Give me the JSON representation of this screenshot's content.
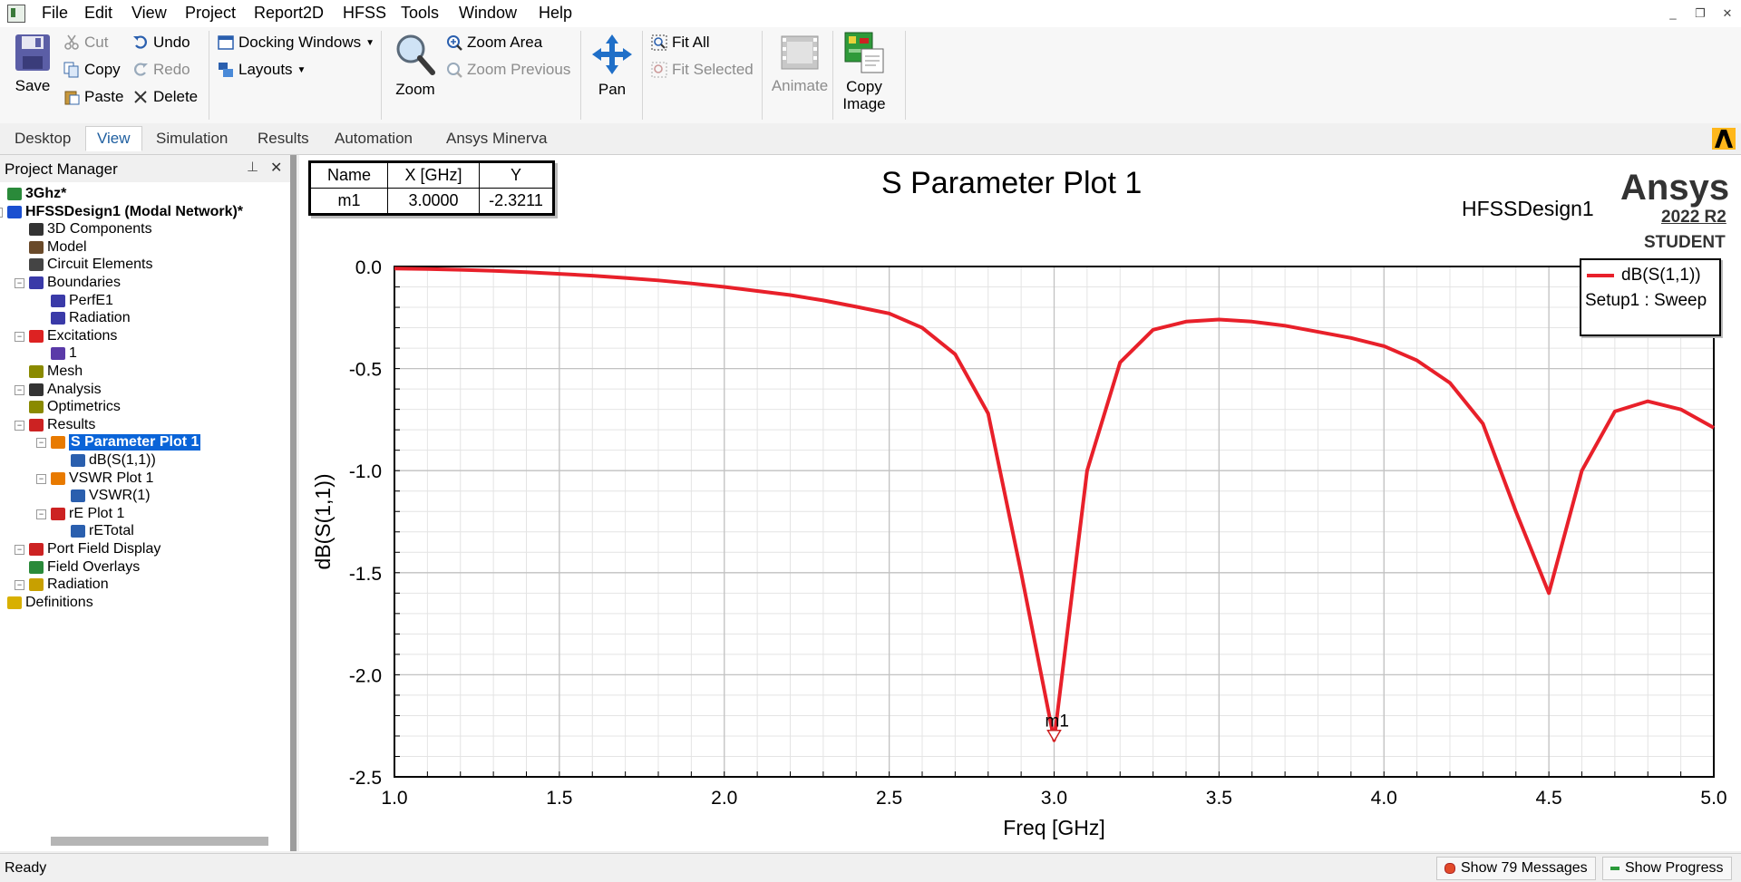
{
  "menubar": {
    "items": [
      "File",
      "Edit",
      "View",
      "Project",
      "Report2D",
      "HFSS",
      "Tools",
      "Window",
      "Help"
    ]
  },
  "ribbon": {
    "save": "Save",
    "cut": "Cut",
    "copy": "Copy",
    "paste": "Paste",
    "undo": "Undo",
    "redo": "Redo",
    "delete": "Delete",
    "docking_windows": "Docking Windows",
    "layouts": "Layouts",
    "zoom": "Zoom",
    "zoom_area": "Zoom Area",
    "zoom_previous": "Zoom Previous",
    "pan": "Pan",
    "fit_all": "Fit All",
    "fit_selected": "Fit Selected",
    "animate": "Animate",
    "copy_image_1": "Copy",
    "copy_image_2": "Image"
  },
  "tabs": [
    "Desktop",
    "View",
    "Simulation",
    "Results",
    "Automation",
    "Ansys Minerva"
  ],
  "active_tab": "View",
  "project_manager": {
    "title": "Project Manager",
    "tree": [
      {
        "label": "3Ghz*",
        "level": 0,
        "bold": true
      },
      {
        "label": "HFSSDesign1 (Modal Network)*",
        "level": 0,
        "bold": true
      },
      {
        "label": "3D Components",
        "level": 1
      },
      {
        "label": "Model",
        "level": 1
      },
      {
        "label": "Circuit Elements",
        "level": 1
      },
      {
        "label": "Boundaries",
        "level": 1
      },
      {
        "label": "PerfE1",
        "level": 2
      },
      {
        "label": "Radiation",
        "level": 2
      },
      {
        "label": "Excitations",
        "level": 1
      },
      {
        "label": "1",
        "level": 2
      },
      {
        "label": "Mesh",
        "level": 1
      },
      {
        "label": "Analysis",
        "level": 1
      },
      {
        "label": "Optimetrics",
        "level": 1
      },
      {
        "label": "Results",
        "level": 1
      },
      {
        "label": "S Parameter Plot 1",
        "level": 2,
        "selected": true
      },
      {
        "label": "dB(S(1,1))",
        "level": 3
      },
      {
        "label": "VSWR Plot 1",
        "level": 2
      },
      {
        "label": "VSWR(1)",
        "level": 3
      },
      {
        "label": "rE Plot 1",
        "level": 2
      },
      {
        "label": "rETotal",
        "level": 3
      },
      {
        "label": "Port Field Display",
        "level": 1
      },
      {
        "label": "Field Overlays",
        "level": 1
      },
      {
        "label": "Radiation",
        "level": 1
      },
      {
        "label": "Definitions",
        "level": 0
      }
    ]
  },
  "marker_table": {
    "headers": [
      "Name",
      "X [GHz]",
      "Y"
    ],
    "rows": [
      [
        "m1",
        "3.0000",
        "-2.3211"
      ]
    ]
  },
  "plot_header": {
    "design": "HFSSDesign1",
    "brand": "Ansys",
    "version": "2022 R2",
    "edition": "STUDENT"
  },
  "chart_data": {
    "type": "line",
    "title": "S Parameter Plot 1",
    "xlabel": "Freq [GHz]",
    "ylabel": "dB(S(1,1))",
    "xlim": [
      1.0,
      5.0
    ],
    "ylim": [
      -2.5,
      0.0
    ],
    "xticks": [
      "1.0",
      "1.5",
      "2.0",
      "2.5",
      "3.0",
      "3.5",
      "4.0",
      "4.5",
      "5.0"
    ],
    "yticks": [
      "0.0",
      "-0.5",
      "-1.0",
      "-1.5",
      "-2.0",
      "-2.5"
    ],
    "grid": true,
    "legend_position": "top-right",
    "series": [
      {
        "name": "dB(S(1,1))",
        "subtitle": "Setup1 : Sweep",
        "color": "#e8202a",
        "x": [
          1.0,
          1.1,
          1.2,
          1.3,
          1.4,
          1.5,
          1.6,
          1.7,
          1.8,
          1.9,
          2.0,
          2.1,
          2.2,
          2.3,
          2.4,
          2.5,
          2.6,
          2.7,
          2.8,
          2.9,
          3.0,
          3.1,
          3.2,
          3.3,
          3.4,
          3.5,
          3.6,
          3.7,
          3.8,
          3.9,
          4.0,
          4.1,
          4.2,
          4.3,
          4.4,
          4.5,
          4.6,
          4.7,
          4.8,
          4.9,
          5.0
        ],
        "y": [
          -0.01,
          -0.012,
          -0.016,
          -0.021,
          -0.028,
          -0.036,
          -0.045,
          -0.056,
          -0.068,
          -0.083,
          -0.1,
          -0.12,
          -0.14,
          -0.166,
          -0.197,
          -0.23,
          -0.3,
          -0.43,
          -0.72,
          -1.5,
          -2.32,
          -1.0,
          -0.47,
          -0.31,
          -0.27,
          -0.26,
          -0.27,
          -0.29,
          -0.32,
          -0.35,
          -0.39,
          -0.46,
          -0.57,
          -0.77,
          -1.2,
          -1.6,
          -1.0,
          -0.71,
          -0.66,
          -0.7,
          -0.79
        ]
      }
    ],
    "markers": [
      {
        "name": "m1",
        "x": 3.0,
        "y": -2.3211
      }
    ]
  },
  "statusbar": {
    "status": "Ready",
    "messages": "Show 79 Messages",
    "progress": "Show Progress"
  }
}
